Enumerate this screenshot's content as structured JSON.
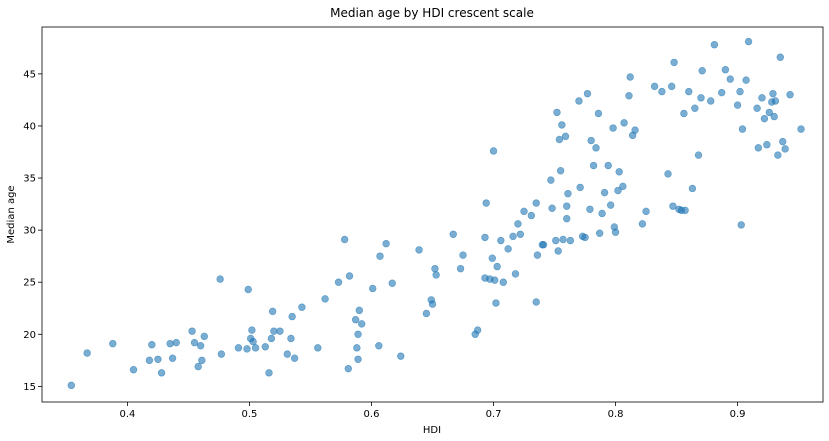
{
  "chart_data": {
    "type": "scatter",
    "title": "Median age by HDI crescent scale",
    "xlabel": "HDI",
    "ylabel": "Median age",
    "xlim": [
      0.33,
      0.97
    ],
    "ylim": [
      13.5,
      49.5
    ],
    "xticks": [
      "0.4",
      "0.5",
      "0.6",
      "0.7",
      "0.8",
      "0.9"
    ],
    "yticks": [
      "15",
      "20",
      "25",
      "30",
      "35",
      "40",
      "45"
    ],
    "grid": false,
    "legend": "none",
    "marker_color": "#1f77b4",
    "marker_alpha": 0.6,
    "points": [
      [
        0.354,
        15.1
      ],
      [
        0.367,
        18.2
      ],
      [
        0.388,
        19.1
      ],
      [
        0.405,
        16.6
      ],
      [
        0.418,
        17.5
      ],
      [
        0.42,
        19.0
      ],
      [
        0.425,
        17.6
      ],
      [
        0.428,
        16.3
      ],
      [
        0.435,
        19.1
      ],
      [
        0.437,
        17.7
      ],
      [
        0.44,
        19.2
      ],
      [
        0.453,
        20.3
      ],
      [
        0.455,
        19.2
      ],
      [
        0.458,
        16.9
      ],
      [
        0.46,
        18.9
      ],
      [
        0.461,
        17.5
      ],
      [
        0.463,
        19.8
      ],
      [
        0.476,
        25.3
      ],
      [
        0.477,
        18.1
      ],
      [
        0.491,
        18.7
      ],
      [
        0.498,
        18.6
      ],
      [
        0.499,
        24.3
      ],
      [
        0.501,
        19.6
      ],
      [
        0.502,
        20.4
      ],
      [
        0.503,
        19.3
      ],
      [
        0.505,
        18.7
      ],
      [
        0.513,
        18.8
      ],
      [
        0.516,
        16.3
      ],
      [
        0.518,
        19.6
      ],
      [
        0.519,
        22.2
      ],
      [
        0.52,
        20.3
      ],
      [
        0.525,
        20.3
      ],
      [
        0.531,
        18.1
      ],
      [
        0.534,
        19.6
      ],
      [
        0.535,
        21.7
      ],
      [
        0.537,
        17.7
      ],
      [
        0.543,
        22.6
      ],
      [
        0.556,
        18.7
      ],
      [
        0.562,
        23.4
      ],
      [
        0.573,
        25.0
      ],
      [
        0.578,
        29.1
      ],
      [
        0.581,
        16.7
      ],
      [
        0.582,
        25.6
      ],
      [
        0.587,
        21.4
      ],
      [
        0.588,
        18.7
      ],
      [
        0.589,
        17.6
      ],
      [
        0.589,
        20.0
      ],
      [
        0.59,
        22.3
      ],
      [
        0.592,
        21.0
      ],
      [
        0.601,
        24.4
      ],
      [
        0.606,
        18.9
      ],
      [
        0.607,
        27.5
      ],
      [
        0.612,
        28.7
      ],
      [
        0.617,
        24.9
      ],
      [
        0.624,
        17.9
      ],
      [
        0.639,
        28.1
      ],
      [
        0.645,
        22.0
      ],
      [
        0.649,
        23.3
      ],
      [
        0.65,
        22.9
      ],
      [
        0.652,
        26.3
      ],
      [
        0.653,
        25.7
      ],
      [
        0.667,
        29.6
      ],
      [
        0.673,
        26.3
      ],
      [
        0.675,
        27.6
      ],
      [
        0.685,
        20.0
      ],
      [
        0.687,
        20.4
      ],
      [
        0.693,
        25.4
      ],
      [
        0.693,
        29.3
      ],
      [
        0.694,
        32.6
      ],
      [
        0.697,
        25.3
      ],
      [
        0.699,
        27.3
      ],
      [
        0.7,
        37.6
      ],
      [
        0.701,
        25.2
      ],
      [
        0.702,
        23.0
      ],
      [
        0.703,
        26.5
      ],
      [
        0.706,
        29.0
      ],
      [
        0.708,
        25.0
      ],
      [
        0.712,
        28.2
      ],
      [
        0.716,
        29.4
      ],
      [
        0.718,
        25.8
      ],
      [
        0.72,
        30.6
      ],
      [
        0.722,
        29.6
      ],
      [
        0.725,
        31.8
      ],
      [
        0.731,
        31.4
      ],
      [
        0.735,
        32.6
      ],
      [
        0.735,
        23.1
      ],
      [
        0.736,
        27.6
      ],
      [
        0.74,
        28.6
      ],
      [
        0.741,
        28.6
      ],
      [
        0.747,
        34.8
      ],
      [
        0.748,
        32.1
      ],
      [
        0.751,
        29.0
      ],
      [
        0.752,
        41.3
      ],
      [
        0.753,
        28.0
      ],
      [
        0.754,
        38.7
      ],
      [
        0.755,
        35.7
      ],
      [
        0.756,
        40.1
      ],
      [
        0.757,
        29.1
      ],
      [
        0.759,
        39.0
      ],
      [
        0.76,
        31.1
      ],
      [
        0.76,
        32.3
      ],
      [
        0.761,
        33.5
      ],
      [
        0.763,
        29.0
      ],
      [
        0.77,
        42.4
      ],
      [
        0.771,
        34.1
      ],
      [
        0.773,
        29.4
      ],
      [
        0.775,
        29.3
      ],
      [
        0.777,
        43.1
      ],
      [
        0.779,
        32.0
      ],
      [
        0.78,
        38.6
      ],
      [
        0.782,
        36.2
      ],
      [
        0.784,
        37.9
      ],
      [
        0.786,
        41.2
      ],
      [
        0.787,
        29.7
      ],
      [
        0.789,
        31.6
      ],
      [
        0.791,
        33.6
      ],
      [
        0.794,
        36.2
      ],
      [
        0.796,
        32.4
      ],
      [
        0.798,
        39.8
      ],
      [
        0.799,
        30.3
      ],
      [
        0.8,
        29.8
      ],
      [
        0.802,
        33.8
      ],
      [
        0.803,
        35.6
      ],
      [
        0.806,
        34.2
      ],
      [
        0.807,
        40.3
      ],
      [
        0.811,
        42.9
      ],
      [
        0.812,
        44.7
      ],
      [
        0.814,
        39.1
      ],
      [
        0.816,
        39.6
      ],
      [
        0.822,
        30.6
      ],
      [
        0.825,
        31.8
      ],
      [
        0.832,
        43.8
      ],
      [
        0.838,
        43.3
      ],
      [
        0.843,
        35.4
      ],
      [
        0.846,
        43.8
      ],
      [
        0.847,
        32.3
      ],
      [
        0.848,
        46.1
      ],
      [
        0.852,
        32.0
      ],
      [
        0.854,
        31.9
      ],
      [
        0.856,
        41.2
      ],
      [
        0.857,
        31.9
      ],
      [
        0.86,
        43.3
      ],
      [
        0.863,
        34.0
      ],
      [
        0.865,
        41.7
      ],
      [
        0.868,
        37.2
      ],
      [
        0.87,
        42.7
      ],
      [
        0.871,
        45.3
      ],
      [
        0.878,
        42.4
      ],
      [
        0.881,
        47.8
      ],
      [
        0.887,
        43.2
      ],
      [
        0.89,
        45.4
      ],
      [
        0.894,
        44.5
      ],
      [
        0.9,
        42.0
      ],
      [
        0.902,
        43.3
      ],
      [
        0.903,
        30.5
      ],
      [
        0.904,
        39.7
      ],
      [
        0.907,
        44.4
      ],
      [
        0.909,
        48.1
      ],
      [
        0.916,
        41.7
      ],
      [
        0.917,
        37.9
      ],
      [
        0.92,
        42.7
      ],
      [
        0.922,
        40.7
      ],
      [
        0.924,
        38.2
      ],
      [
        0.926,
        41.3
      ],
      [
        0.928,
        42.3
      ],
      [
        0.929,
        43.1
      ],
      [
        0.93,
        40.9
      ],
      [
        0.931,
        42.4
      ],
      [
        0.933,
        37.2
      ],
      [
        0.935,
        46.6
      ],
      [
        0.937,
        38.5
      ],
      [
        0.939,
        37.8
      ],
      [
        0.943,
        43.0
      ],
      [
        0.952,
        39.7
      ]
    ]
  }
}
